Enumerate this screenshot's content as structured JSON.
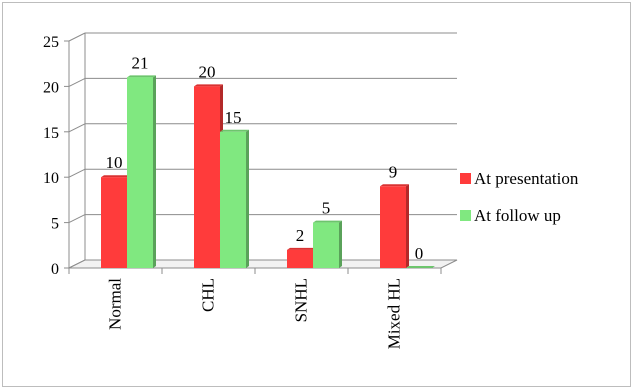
{
  "chart_data": {
    "type": "bar",
    "categories": [
      "Normal",
      "CHL",
      "SNHL",
      "Mixed HL"
    ],
    "series": [
      {
        "name": "At presentation",
        "values": [
          10,
          20,
          2,
          9
        ],
        "color": "#ff3b3b"
      },
      {
        "name": "At follow up",
        "values": [
          21,
          15,
          5,
          0
        ],
        "color": "#80e880"
      }
    ],
    "data_labels": [
      [
        "10",
        "20",
        "2",
        "9"
      ],
      [
        "21",
        "15",
        "5",
        "0"
      ]
    ],
    "y_ticks": [
      "0",
      "5",
      "10",
      "15",
      "20",
      "25"
    ],
    "ylim": [
      0,
      25
    ],
    "grid": true,
    "legend_position": "right",
    "title": "",
    "xlabel": "",
    "ylabel": ""
  }
}
